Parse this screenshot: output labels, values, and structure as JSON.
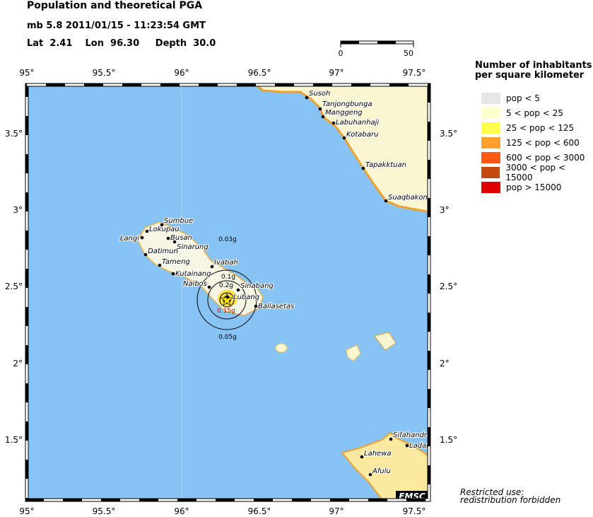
{
  "header": {
    "title": "Population and theoretical PGA",
    "event_line": "mb 5.8  2011/01/15 - 11:23:54 GMT",
    "location_line": "Lat  2.41    Lon  96.30     Depth  30.0"
  },
  "scale_bar": {
    "start_label": "0",
    "end_label": "50"
  },
  "axes": {
    "lon_ticks": [
      "95°",
      "95.5°",
      "96°",
      "96.5°",
      "97°",
      "97.5°"
    ],
    "lat_ticks": [
      "3.5°",
      "3°",
      "2.5°",
      "2°",
      "1.5°"
    ]
  },
  "epicenter": {
    "lat": 2.41,
    "lon": 96.3
  },
  "pga_labels": [
    "0.03g",
    "0.05g",
    "0.1g",
    "0.2g",
    "0.15g"
  ],
  "cities": [
    "Susoh",
    "Tanjongbunga",
    "Manggeng",
    "Labuhanhaji",
    "Kotabaru",
    "Tapakktuan",
    "Suaqbakong",
    "Sumbue",
    "Lokupau",
    "Langi",
    "Busan",
    "Sinarung",
    "Datimun",
    "Tameng",
    "Kutainang",
    "Ivabah",
    "Naibos",
    "Sinabang",
    "Lubang",
    "Ballasetas",
    "Sifahandro",
    "Ladara",
    "Lahewa",
    "Afulu"
  ],
  "legend": {
    "title_line1": "Number of inhabitants",
    "title_line2": "per square kilometer",
    "items": [
      {
        "label": "pop < 5",
        "color": "#e6e6e6"
      },
      {
        "label": "5 < pop < 25",
        "color": "#ffffcc"
      },
      {
        "label": "25 < pop < 125",
        "color": "#ffff50"
      },
      {
        "label": "125 < pop < 600",
        "color": "#ffa030"
      },
      {
        "label": "600 < pop < 3000",
        "color": "#ff5a14"
      },
      {
        "label": "3000 < pop < 15000",
        "color": "#c04a10"
      },
      {
        "label": "pop > 15000",
        "color": "#e00000"
      }
    ]
  },
  "logo": "EMSC",
  "notice_line1": "Restricted use:",
  "notice_line2": "redistribution forbidden",
  "colors": {
    "sea": "#87c4f5",
    "land": "#fbf6d2",
    "coast": "#f0a030",
    "pga_contour": "#000000",
    "pga_max_label": "#e00000"
  }
}
